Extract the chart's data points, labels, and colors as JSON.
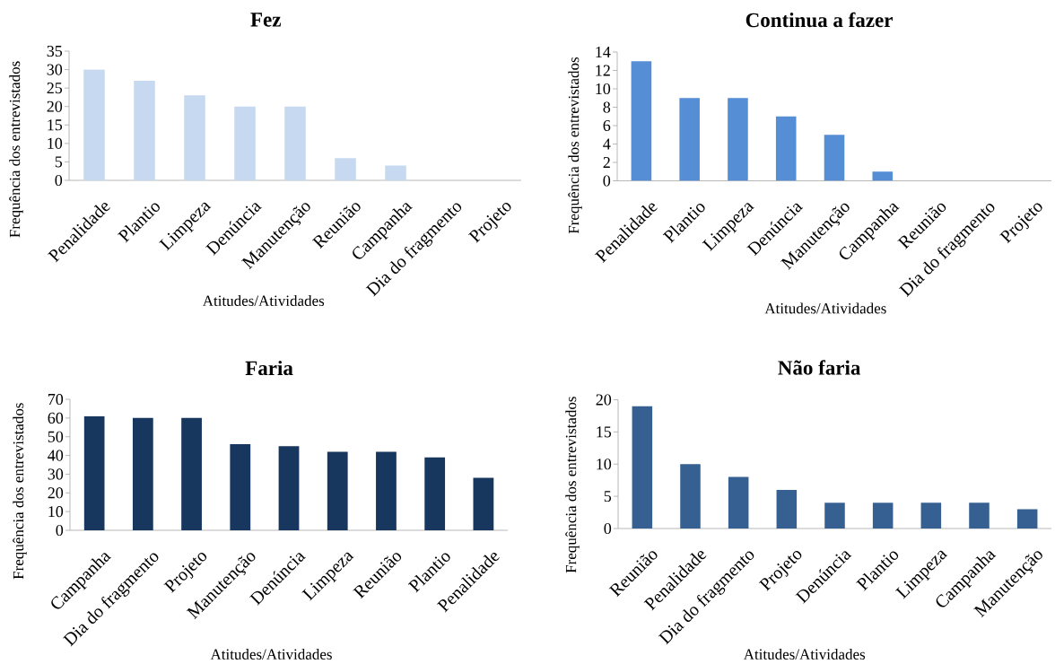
{
  "chart_data": [
    {
      "type": "bar",
      "title": "Fez",
      "xlabel": "Atitudes/Atividades",
      "ylabel": "Frequência dos entrevistados",
      "categories": [
        "Penalidade",
        "Plantio",
        "Limpeza",
        "Denúncia",
        "Manutenção",
        "Reunião",
        "Campanha",
        "Dia do fragmento",
        "Projeto"
      ],
      "values": [
        30,
        27,
        23,
        20,
        20,
        6,
        4,
        0,
        0
      ],
      "color": "#c6d9f1",
      "ylim": [
        0,
        35
      ],
      "yticks": [
        0,
        5,
        10,
        15,
        20,
        25,
        30,
        35
      ]
    },
    {
      "type": "bar",
      "title": "Continua a fazer",
      "xlabel": "Atitudes/Atividades",
      "ylabel": "Frequência dos entrevistados",
      "categories": [
        "Penalidade",
        "Plantio",
        "Limpeza",
        "Denúncia",
        "Manutenção",
        "Campanha",
        "Reunião",
        "Dia do fragmento",
        "Projeto"
      ],
      "values": [
        13,
        9,
        9,
        7,
        5,
        1,
        0,
        0,
        0
      ],
      "color": "#558ed5",
      "ylim": [
        0,
        14
      ],
      "yticks": [
        0,
        2,
        4,
        6,
        8,
        10,
        12,
        14
      ]
    },
    {
      "type": "bar",
      "title": "Faria",
      "xlabel": "Atitudes/Atividades",
      "ylabel": "Frequência dos entrevistados",
      "categories": [
        "Campanha",
        "Dia do fragmento",
        "Projeto",
        "Manutenção",
        "Denúncia",
        "Limpeza",
        "Reunião",
        "Plantio",
        "Penalidade"
      ],
      "values": [
        61,
        60,
        60,
        46,
        45,
        42,
        42,
        39,
        28
      ],
      "color": "#17375e",
      "ylim": [
        0,
        70
      ],
      "yticks": [
        0,
        10,
        20,
        30,
        40,
        50,
        60,
        70
      ]
    },
    {
      "type": "bar",
      "title": "Não faria",
      "xlabel": "Atitudes/Atividades",
      "ylabel": "Frequência dos entrevistados",
      "categories": [
        "Reunião",
        "Penalidade",
        "Dia do fragmento",
        "Projeto",
        "Denúncia",
        "Plantio",
        "Limpeza",
        "Campanha",
        "Manutenção"
      ],
      "values": [
        19,
        10,
        8,
        6,
        4,
        4,
        4,
        4,
        3
      ],
      "color": "#376092",
      "ylim": [
        0,
        20
      ],
      "yticks": [
        0,
        5,
        10,
        15,
        20
      ]
    }
  ]
}
